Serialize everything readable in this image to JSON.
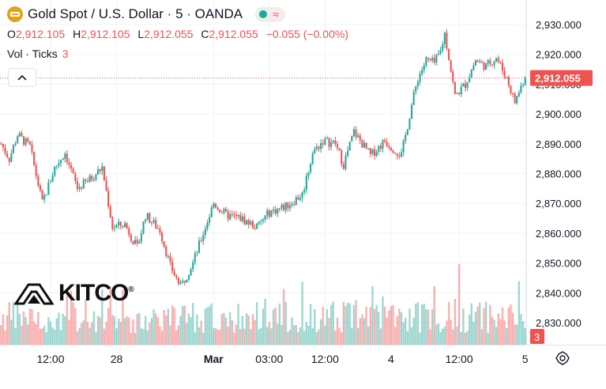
{
  "header": {
    "symbol_title": "Gold Spot / U.S. Dollar · 5 · OANDA",
    "market_icon": "market-open-dot-icon",
    "approx_glyph": "≈",
    "symbol_icon": "gold-bars-icon"
  },
  "ohlc": {
    "o_label": "O",
    "o_value": "2,912.105",
    "h_label": "H",
    "h_value": "2,912.105",
    "l_label": "L",
    "l_value": "2,912.055",
    "c_label": "C",
    "c_value": "2,912.055",
    "change": "−0.055 (−0.00%)"
  },
  "volume": {
    "label": "Vol · Ticks",
    "value": "3"
  },
  "collapse_icon": "chevron-up-icon",
  "watermark": {
    "text": "KITCO",
    "reg": "®"
  },
  "settings_icon": "gear-icon",
  "colors": {
    "up": "#26a69a",
    "down": "#ef5350",
    "grid": "#f0f3fa",
    "text": "#131722"
  },
  "chart_data": {
    "type": "candlestick",
    "title": "Gold Spot / U.S. Dollar · 5 · OANDA",
    "xlabel": "",
    "ylabel": "",
    "ylim": [
      2824,
      2934
    ],
    "y_ticks": [
      "2,930.000",
      "2,920.000",
      "2,910.000",
      "2,900.000",
      "2,890.000",
      "2,880.000",
      "2,870.000",
      "2,860.000",
      "2,850.000",
      "2,840.000",
      "2,830.000"
    ],
    "y_tick_values": [
      2930,
      2920,
      2910,
      2900,
      2890,
      2880,
      2870,
      2860,
      2850,
      2840,
      2830
    ],
    "x_ticks": [
      {
        "label": "12:00",
        "bar": 24
      },
      {
        "label": "28",
        "bar": 56
      },
      {
        "label": "Mar",
        "bar": 103
      },
      {
        "label": "03:00",
        "bar": 130
      },
      {
        "label": "12:00",
        "bar": 157
      },
      {
        "label": "4",
        "bar": 189
      },
      {
        "label": "12:00",
        "bar": 222
      },
      {
        "label": "5",
        "bar": 254
      }
    ],
    "last_price": {
      "label": "2,912.055",
      "value": 2912.055
    },
    "last_volume": {
      "label": "3",
      "value": 3
    },
    "bar_count": 255,
    "close_anchors": [
      [
        0,
        2890
      ],
      [
        4,
        2885
      ],
      [
        8,
        2893
      ],
      [
        14,
        2889
      ],
      [
        20,
        2870
      ],
      [
        26,
        2882
      ],
      [
        31,
        2887
      ],
      [
        37,
        2875
      ],
      [
        43,
        2878
      ],
      [
        49,
        2882
      ],
      [
        54,
        2862
      ],
      [
        60,
        2863
      ],
      [
        66,
        2855
      ],
      [
        70,
        2866
      ],
      [
        77,
        2861
      ],
      [
        82,
        2849
      ],
      [
        87,
        2842
      ],
      [
        93,
        2850
      ],
      [
        98,
        2860
      ],
      [
        103,
        2870
      ],
      [
        109,
        2866
      ],
      [
        116,
        2865
      ],
      [
        124,
        2862
      ],
      [
        130,
        2867
      ],
      [
        138,
        2869
      ],
      [
        146,
        2873
      ],
      [
        151,
        2887
      ],
      [
        156,
        2891
      ],
      [
        162,
        2890
      ],
      [
        166,
        2883
      ],
      [
        171,
        2894
      ],
      [
        179,
        2886
      ],
      [
        186,
        2891
      ],
      [
        194,
        2886
      ],
      [
        199,
        2903
      ],
      [
        202,
        2912
      ],
      [
        206,
        2918
      ],
      [
        210,
        2917
      ],
      [
        213,
        2921
      ],
      [
        215,
        2927
      ],
      [
        217,
        2919
      ],
      [
        220,
        2906
      ],
      [
        225,
        2910
      ],
      [
        230,
        2918
      ],
      [
        235,
        2916
      ],
      [
        240,
        2919
      ],
      [
        245,
        2912
      ],
      [
        249,
        2904
      ],
      [
        253,
        2911
      ],
      [
        254,
        2912.055
      ]
    ],
    "volume_max_ticks": 110
  }
}
